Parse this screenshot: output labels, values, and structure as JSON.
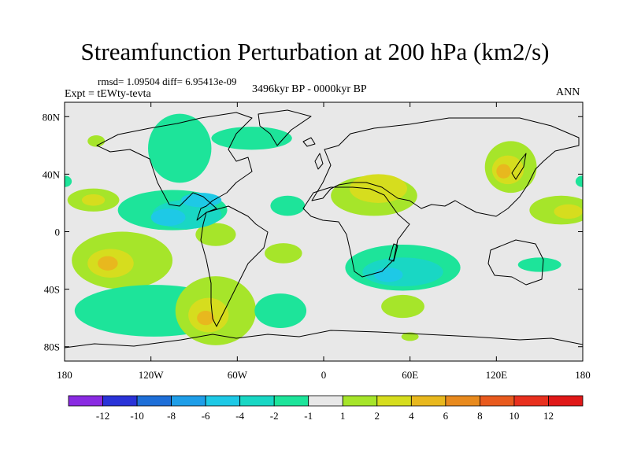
{
  "header": {
    "title": "Streamfunction Perturbation at 200 hPa (km2/s)",
    "stats": "rmsd= 1.09504 diff= 6.95413e-09",
    "period": "3496kyr BP - 0000kyr BP",
    "experiment": "Expt = tEWty-tevta",
    "season": "ANN"
  },
  "chart_data": {
    "type": "heatmap",
    "projection": "cylindrical-equidistant",
    "title": "Streamfunction Perturbation at 200 hPa (km2/s)",
    "units": "km2/s",
    "xlim": [
      -180,
      180
    ],
    "ylim": [
      -90,
      90
    ],
    "x_ticks": [
      {
        "value": -180,
        "label": "180"
      },
      {
        "value": -120,
        "label": "120W"
      },
      {
        "value": -60,
        "label": "60W"
      },
      {
        "value": 0,
        "label": "0"
      },
      {
        "value": 60,
        "label": "60E"
      },
      {
        "value": 120,
        "label": "120E"
      },
      {
        "value": 180,
        "label": "180"
      }
    ],
    "y_ticks": [
      {
        "value": 80,
        "label": "80N"
      },
      {
        "value": 40,
        "label": "40N"
      },
      {
        "value": 0,
        "label": "0"
      },
      {
        "value": -40,
        "label": "40S"
      },
      {
        "value": -80,
        "label": "80S"
      }
    ],
    "colorbar": {
      "labels": [
        "-12",
        "-10",
        "-8",
        "-6",
        "-4",
        "-2",
        "-1",
        "1",
        "2",
        "4",
        "6",
        "8",
        "10",
        "12"
      ],
      "colors": [
        "#8a2be2",
        "#2a33d8",
        "#1e6fd8",
        "#1f9ee8",
        "#1ec9e6",
        "#19d7c4",
        "#1de49a",
        "#e8e8e8",
        "#a6e52a",
        "#d6dd1e",
        "#e8b81e",
        "#e88a1e",
        "#e85a1e",
        "#e8301e",
        "#e01818"
      ]
    },
    "anomalies": [
      {
        "lon": -160,
        "lat": 22,
        "rlon": 18,
        "rlat": 8,
        "level": 1
      },
      {
        "lon": -160,
        "lat": 22,
        "rlon": 8,
        "rlat": 4,
        "level": 2
      },
      {
        "lon": -105,
        "lat": 15,
        "rlon": 38,
        "rlat": 14,
        "level": -1
      },
      {
        "lon": -95,
        "lat": 12,
        "rlon": 24,
        "rlat": 10,
        "level": -2
      },
      {
        "lon": -108,
        "lat": 10,
        "rlon": 12,
        "rlat": 6,
        "level": -3
      },
      {
        "lon": -85,
        "lat": 22,
        "rlon": 14,
        "rlat": 5,
        "level": -3
      },
      {
        "lon": -100,
        "lat": 58,
        "rlon": 22,
        "rlat": 24,
        "level": -1
      },
      {
        "lon": -50,
        "lat": 65,
        "rlon": 28,
        "rlat": 8,
        "level": -1
      },
      {
        "lon": -158,
        "lat": 63,
        "rlon": 6,
        "rlat": 4,
        "level": 1
      },
      {
        "lon": -140,
        "lat": -20,
        "rlon": 35,
        "rlat": 20,
        "level": 1
      },
      {
        "lon": -148,
        "lat": -22,
        "rlon": 16,
        "rlat": 10,
        "level": 2
      },
      {
        "lon": -150,
        "lat": -22,
        "rlon": 7,
        "rlat": 5,
        "level": 3
      },
      {
        "lon": -118,
        "lat": -55,
        "rlon": 55,
        "rlat": 18,
        "level": -1
      },
      {
        "lon": -75,
        "lat": -55,
        "rlon": 28,
        "rlat": 24,
        "level": 1
      },
      {
        "lon": -80,
        "lat": -58,
        "rlon": 14,
        "rlat": 12,
        "level": 2
      },
      {
        "lon": -82,
        "lat": -60,
        "rlon": 6,
        "rlat": 5,
        "level": 3
      },
      {
        "lon": -75,
        "lat": -2,
        "rlon": 14,
        "rlat": 8,
        "level": 1
      },
      {
        "lon": -25,
        "lat": 18,
        "rlon": 12,
        "rlat": 7,
        "level": -1
      },
      {
        "lon": -28,
        "lat": -15,
        "rlon": 13,
        "rlat": 7,
        "level": 1
      },
      {
        "lon": -30,
        "lat": -55,
        "rlon": 18,
        "rlat": 12,
        "level": -1
      },
      {
        "lon": 35,
        "lat": 25,
        "rlon": 30,
        "rlat": 14,
        "level": 1
      },
      {
        "lon": 38,
        "lat": 30,
        "rlon": 20,
        "rlat": 10,
        "level": 2
      },
      {
        "lon": 55,
        "lat": -25,
        "rlon": 40,
        "rlat": 16,
        "level": -1
      },
      {
        "lon": 55,
        "lat": -28,
        "rlon": 28,
        "rlat": 10,
        "level": -2
      },
      {
        "lon": 45,
        "lat": -30,
        "rlon": 10,
        "rlat": 5,
        "level": -3
      },
      {
        "lon": 55,
        "lat": -52,
        "rlon": 15,
        "rlat": 8,
        "level": 1
      },
      {
        "lon": 60,
        "lat": -73,
        "rlon": 6,
        "rlat": 3,
        "level": 1
      },
      {
        "lon": 130,
        "lat": 45,
        "rlon": 18,
        "rlat": 18,
        "level": 1
      },
      {
        "lon": 128,
        "lat": 43,
        "rlon": 11,
        "rlat": 10,
        "level": 2
      },
      {
        "lon": 125,
        "lat": 42,
        "rlon": 5,
        "rlat": 5,
        "level": 3
      },
      {
        "lon": 165,
        "lat": 15,
        "rlon": 22,
        "rlat": 10,
        "level": 1
      },
      {
        "lon": 170,
        "lat": 14,
        "rlon": 10,
        "rlat": 5,
        "level": 2
      },
      {
        "lon": 150,
        "lat": -23,
        "rlon": 15,
        "rlat": 5,
        "level": -1
      },
      {
        "lon": 180,
        "lat": 35,
        "rlon": 5,
        "rlat": 4,
        "level": -1
      },
      {
        "lon": -180,
        "lat": 35,
        "rlon": 5,
        "rlat": 4,
        "level": -1
      }
    ]
  }
}
